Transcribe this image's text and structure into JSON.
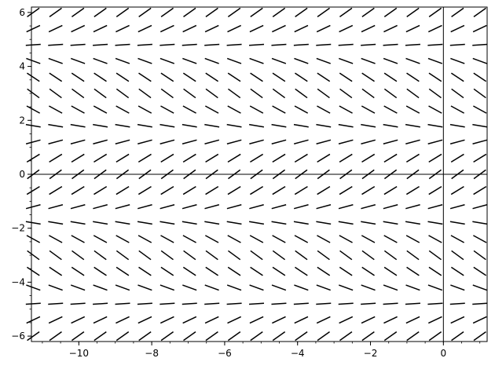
{
  "chart_data": {
    "type": "vector_field",
    "title": "",
    "xlabel": "",
    "ylabel": "",
    "xlim": [
      -11.3,
      1.2
    ],
    "ylim": [
      -6.2,
      6.2
    ],
    "x_ticks": [
      {
        "value": -10,
        "label": "−10"
      },
      {
        "value": -8,
        "label": "−8"
      },
      {
        "value": -6,
        "label": "−6"
      },
      {
        "value": -4,
        "label": "−4"
      },
      {
        "value": -2,
        "label": "−2"
      },
      {
        "value": 0,
        "label": "0"
      }
    ],
    "y_ticks": [
      {
        "value": -6,
        "label": "−6"
      },
      {
        "value": -4,
        "label": "−4"
      },
      {
        "value": -2,
        "label": "−2"
      },
      {
        "value": 0,
        "label": "0"
      },
      {
        "value": 2,
        "label": "2"
      },
      {
        "value": 4,
        "label": "4"
      },
      {
        "value": 6,
        "label": "6"
      }
    ],
    "x_minor_step": 0.5,
    "y_minor_step": 0.5,
    "grid": false,
    "axes_lines_at_zero": true,
    "field": {
      "x_start": -11.25,
      "x_end": 1.0,
      "x_count": 21,
      "y_start": -6.0,
      "y_end": 6.0,
      "y_count": 21,
      "slope_model": "cos(y)",
      "segment_color": "#000000"
    }
  }
}
